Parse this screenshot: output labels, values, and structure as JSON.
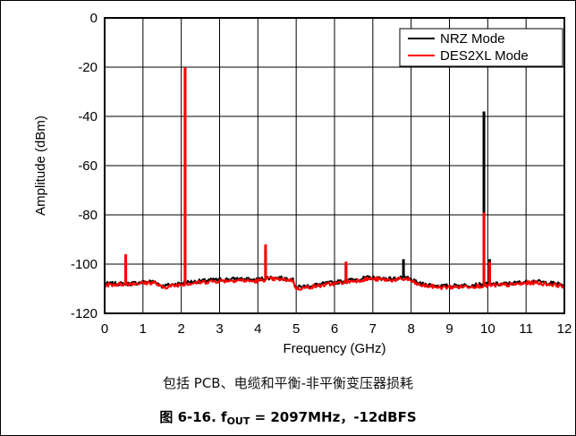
{
  "chart_data": {
    "type": "line",
    "xlabel": "Frequency (GHz)",
    "ylabel": "Amplitude (dBm)",
    "xlim": [
      0,
      12
    ],
    "ylim": [
      -120,
      0
    ],
    "xticks": [
      0,
      1,
      2,
      3,
      4,
      5,
      6,
      7,
      8,
      9,
      10,
      11,
      12
    ],
    "yticks": [
      0,
      -20,
      -40,
      -60,
      -80,
      -100,
      -120
    ],
    "xtick_labels": [
      "0",
      "1",
      "2",
      "3",
      "4",
      "5",
      "6",
      "7",
      "8",
      "9",
      "10",
      "11",
      "12"
    ],
    "ytick_labels": [
      "0",
      "-20",
      "-40",
      "-60",
      "-80",
      "-100",
      "-120"
    ],
    "grid": true,
    "legend_position": "top-right",
    "series": [
      {
        "name": "NRZ Mode",
        "color": "#000000",
        "floor": [
          [
            0,
            -108
          ],
          [
            0.6,
            -108
          ],
          [
            1.3,
            -107
          ],
          [
            1.5,
            -109
          ],
          [
            2.1,
            -107.5
          ],
          [
            2.8,
            -106.5
          ],
          [
            3.5,
            -106
          ],
          [
            3.9,
            -106.5
          ],
          [
            4.3,
            -105.5
          ],
          [
            4.9,
            -106
          ],
          [
            5.0,
            -109.5
          ],
          [
            5.5,
            -108.5
          ],
          [
            6.2,
            -107
          ],
          [
            6.9,
            -105.5
          ],
          [
            7.5,
            -106
          ],
          [
            7.9,
            -105.5
          ],
          [
            8.2,
            -108
          ],
          [
            8.8,
            -109
          ],
          [
            9.6,
            -108.5
          ],
          [
            10.5,
            -108
          ],
          [
            11.2,
            -107
          ],
          [
            11.8,
            -108
          ],
          [
            12,
            -108.5
          ]
        ],
        "peaks": [
          [
            0.55,
            -98
          ],
          [
            2.1,
            -21
          ],
          [
            4.2,
            -94
          ],
          [
            6.3,
            -100
          ],
          [
            7.8,
            -98
          ],
          [
            9.9,
            -38
          ],
          [
            10.05,
            -98
          ]
        ]
      },
      {
        "name": "DES2XL Mode",
        "color": "#ff0000",
        "floor": [
          [
            0,
            -108.5
          ],
          [
            0.6,
            -108
          ],
          [
            1.3,
            -107.5
          ],
          [
            1.5,
            -109.5
          ],
          [
            2.1,
            -108
          ],
          [
            2.8,
            -107
          ],
          [
            3.5,
            -106.5
          ],
          [
            3.9,
            -107
          ],
          [
            4.3,
            -106
          ],
          [
            4.9,
            -106.5
          ],
          [
            5.0,
            -110
          ],
          [
            5.5,
            -109
          ],
          [
            6.2,
            -107.5
          ],
          [
            6.9,
            -106
          ],
          [
            7.5,
            -106.5
          ],
          [
            7.9,
            -106
          ],
          [
            8.2,
            -108.5
          ],
          [
            8.8,
            -109.5
          ],
          [
            9.6,
            -109
          ],
          [
            10.5,
            -108.5
          ],
          [
            11.2,
            -107.5
          ],
          [
            11.8,
            -108.5
          ],
          [
            12,
            -109
          ]
        ],
        "peaks": [
          [
            0.55,
            -96
          ],
          [
            2.1,
            -20
          ],
          [
            4.2,
            -92
          ],
          [
            6.3,
            -99
          ],
          [
            9.9,
            -79
          ],
          [
            10.05,
            -99
          ]
        ]
      }
    ]
  },
  "caption": {
    "note": "包括 PCB、电缆和平衡-非平衡变压器损耗",
    "prefix": "图 6-16. f",
    "sub": "OUT",
    "suffix": " = 2097MHz，-12dBFS"
  }
}
